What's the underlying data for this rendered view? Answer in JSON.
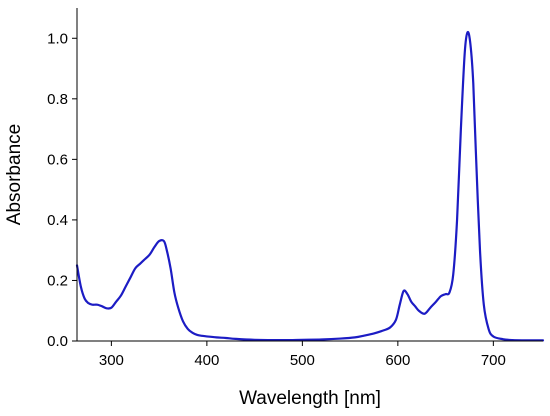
{
  "chart_data": {
    "type": "line",
    "title": "",
    "xlabel": "Wavelength [nm]",
    "ylabel": "Absorbance",
    "xlim": [
      264,
      752
    ],
    "ylim": [
      0,
      1.1
    ],
    "x_ticks": [
      300,
      400,
      500,
      600,
      700
    ],
    "x_tick_labels": [
      "300",
      "400",
      "500",
      "600",
      "700"
    ],
    "y_ticks": [
      0,
      0.2,
      0.4,
      0.6,
      0.8,
      1.0
    ],
    "y_tick_labels": [
      "0.0",
      "0.2",
      "0.4",
      "0.6",
      "0.8",
      "1.0"
    ],
    "grid": false,
    "legend": "none",
    "line_color": "#1c1cc4",
    "series": [
      {
        "x": [
          264,
          268,
          272,
          276,
          280,
          285,
          290,
          295,
          300,
          305,
          310,
          315,
          320,
          325,
          330,
          335,
          340,
          345,
          350,
          355,
          358,
          362,
          366,
          370,
          375,
          380,
          385,
          390,
          395,
          400,
          410,
          420,
          430,
          450,
          480,
          500,
          520,
          540,
          555,
          565,
          575,
          585,
          592,
          598,
          602,
          606,
          610,
          614,
          618,
          622,
          628,
          634,
          640,
          645,
          650,
          654,
          658,
          662,
          666,
          670,
          673,
          676,
          679,
          682,
          686,
          690,
          695,
          700,
          710,
          720,
          735,
          752
        ],
        "y": [
          0.25,
          0.18,
          0.14,
          0.125,
          0.12,
          0.12,
          0.115,
          0.108,
          0.11,
          0.13,
          0.15,
          0.18,
          0.21,
          0.24,
          0.255,
          0.27,
          0.285,
          0.31,
          0.33,
          0.33,
          0.3,
          0.24,
          0.16,
          0.11,
          0.065,
          0.04,
          0.027,
          0.02,
          0.017,
          0.015,
          0.012,
          0.01,
          0.007,
          0.004,
          0.003,
          0.004,
          0.005,
          0.008,
          0.012,
          0.018,
          0.025,
          0.035,
          0.045,
          0.07,
          0.12,
          0.165,
          0.155,
          0.13,
          0.115,
          0.1,
          0.09,
          0.11,
          0.13,
          0.148,
          0.155,
          0.16,
          0.22,
          0.4,
          0.7,
          0.95,
          1.02,
          0.98,
          0.85,
          0.6,
          0.3,
          0.12,
          0.04,
          0.015,
          0.006,
          0.003,
          0.002,
          0.002
        ]
      }
    ]
  }
}
